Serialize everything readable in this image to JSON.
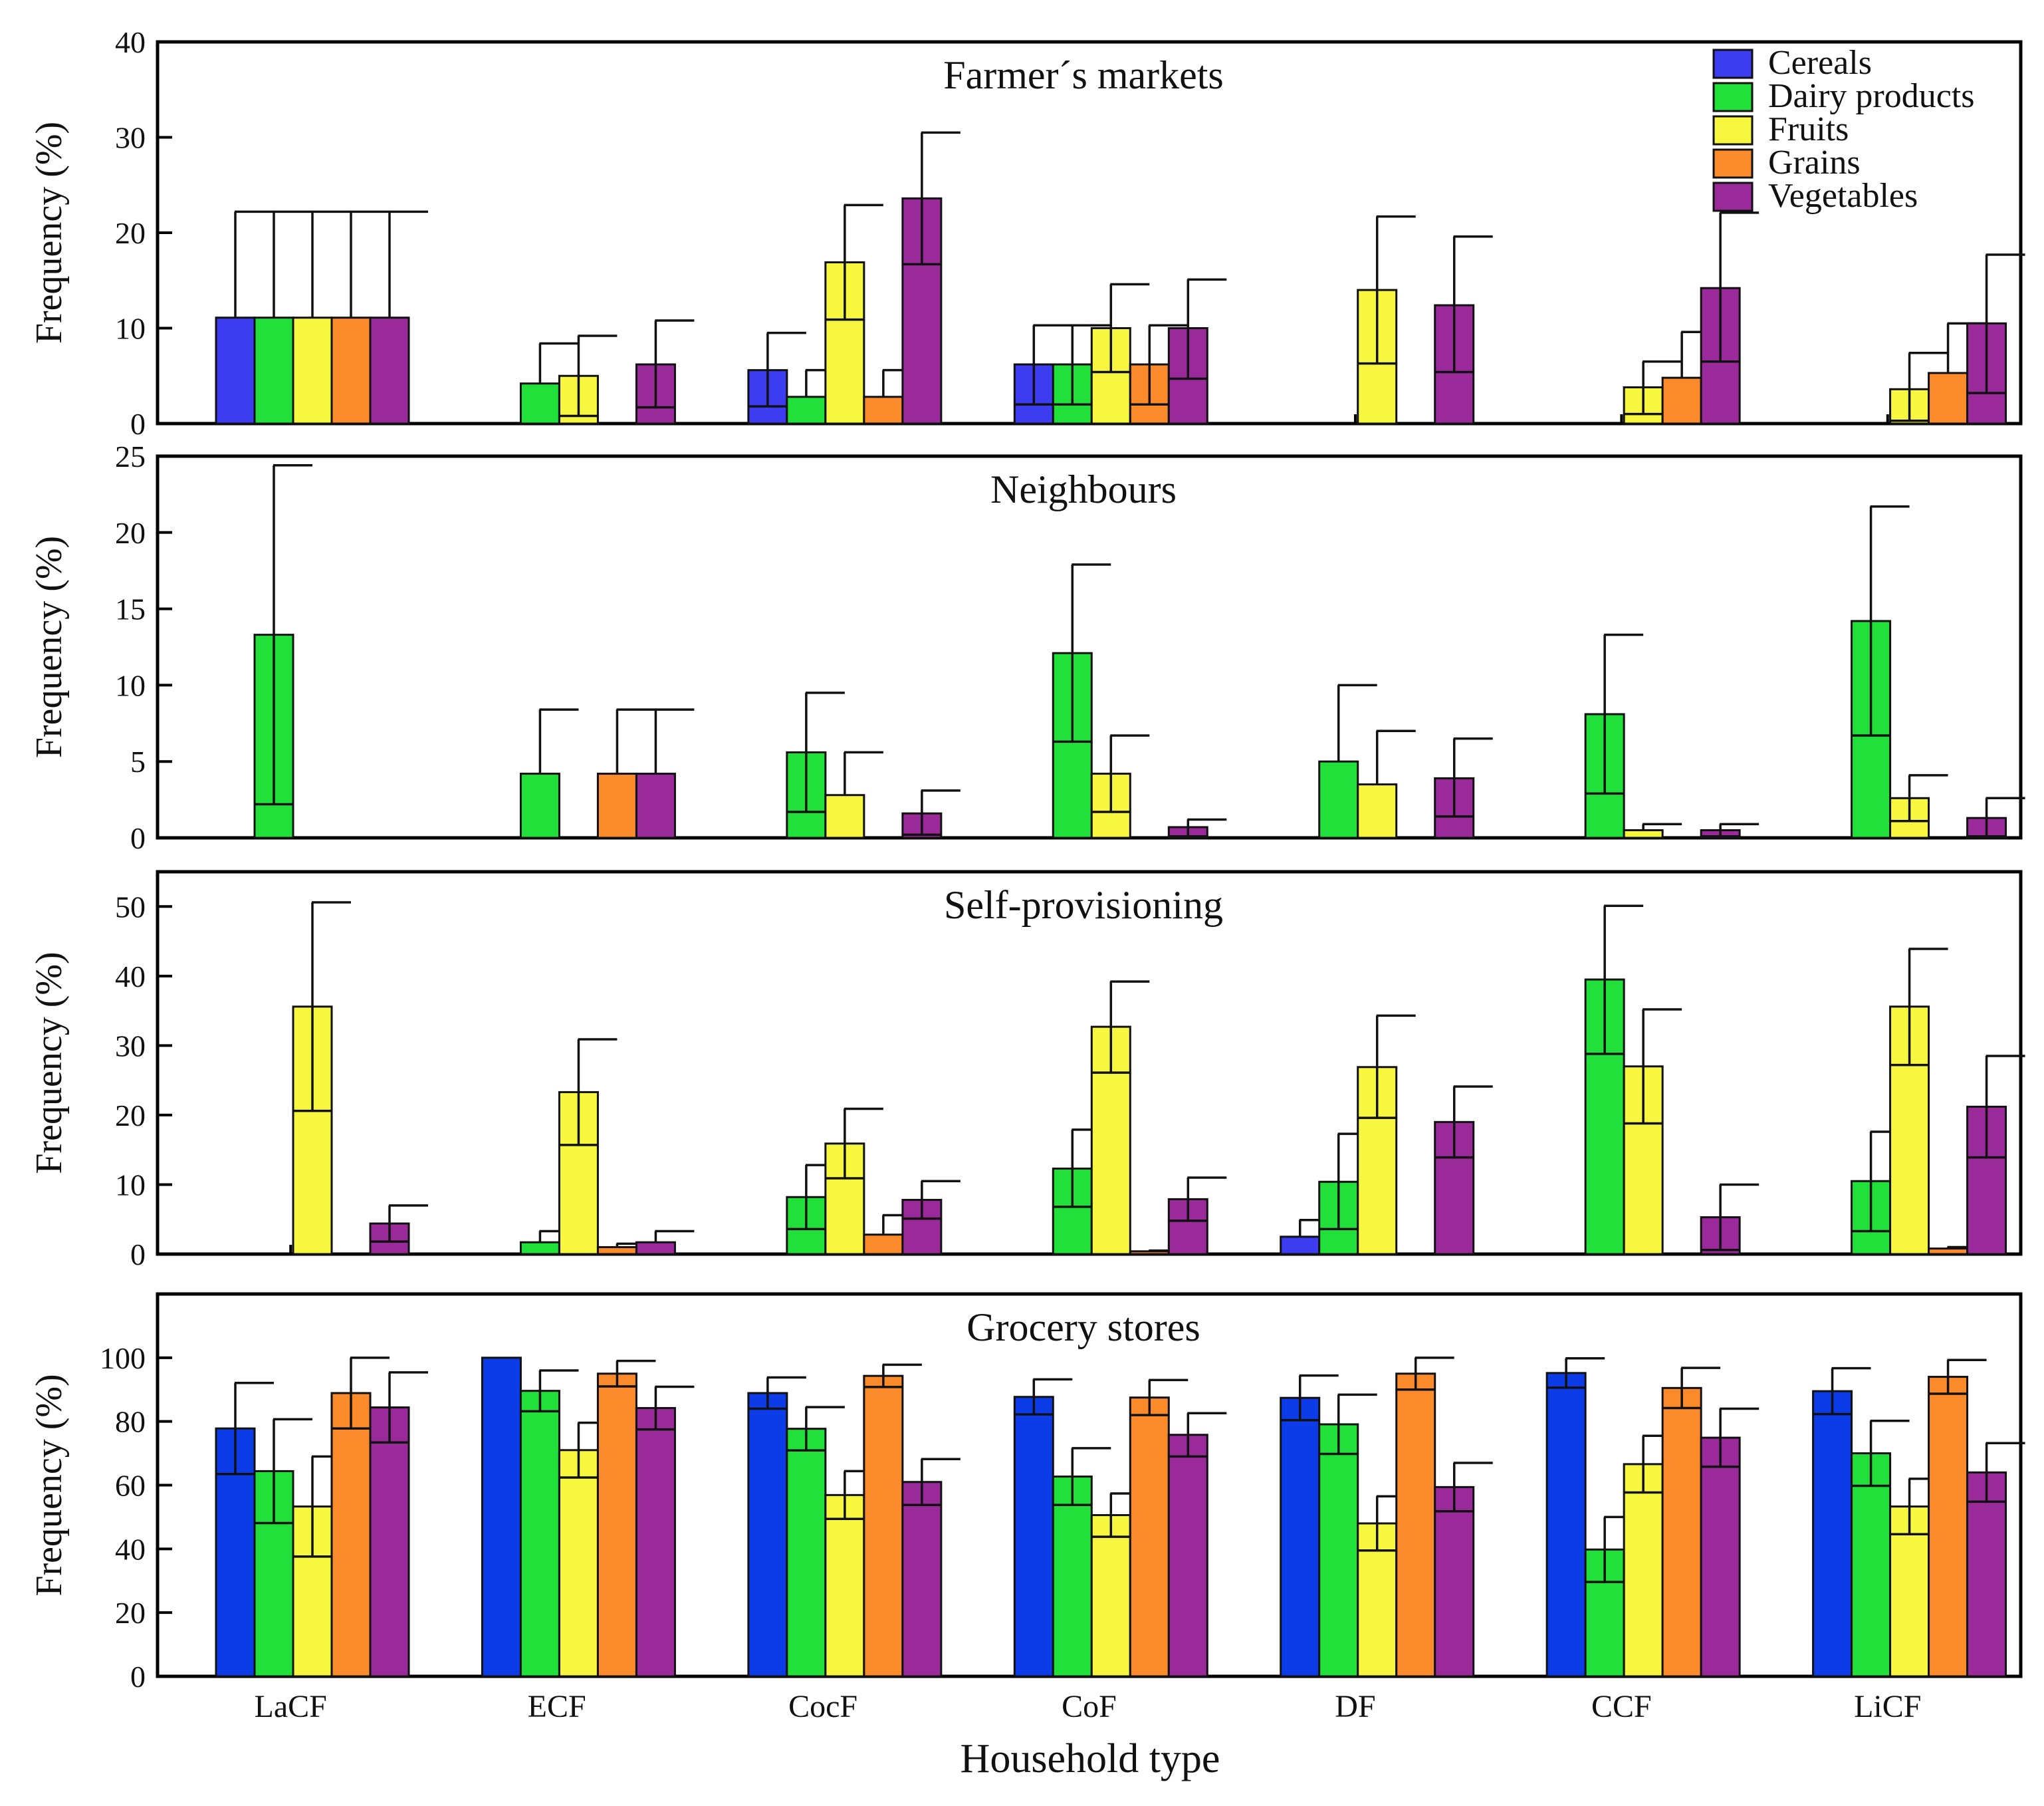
{
  "chart_data": {
    "type": "bar",
    "xlabel": "Household type",
    "ylabel": "Frequency (%)",
    "categories": [
      "LaCF",
      "ECF",
      "CocF",
      "CoF",
      "DF",
      "CCF",
      "LiCF"
    ],
    "legend": {
      "placement": "top-right",
      "entries": [
        "Cereals",
        "Dairy products",
        "Fruits",
        "Grains",
        "Vegetables"
      ]
    },
    "colors": {
      "Cereals": "#3c3cf0",
      "Dairy products": "#22e03a",
      "Fruits": "#f7f740",
      "Grains": "#fb8a2a",
      "Vegetables": "#9a2a9a"
    },
    "panels": [
      {
        "title": "Farmer´s markets",
        "ylim": [
          0,
          40
        ],
        "yticks": [
          0,
          10,
          20,
          30,
          40
        ],
        "series": [
          {
            "name": "Cereals",
            "color": "#3c3cf0",
            "values": [
              11.1,
              0,
              5.6,
              6.2,
              0,
              0,
              0
            ],
            "err_low": [
              0,
              0,
              1.8,
              2.0,
              0,
              0,
              0
            ],
            "err_high": [
              22.2,
              0,
              9.5,
              10.3,
              0,
              0,
              0
            ]
          },
          {
            "name": "Dairy products",
            "color": "#22e03a",
            "values": [
              11.1,
              4.2,
              2.8,
              6.2,
              0,
              0,
              0
            ],
            "err_low": [
              0,
              0,
              0,
              2.0,
              0,
              0,
              0
            ],
            "err_high": [
              22.2,
              8.4,
              5.6,
              10.3,
              0,
              0,
              0
            ]
          },
          {
            "name": "Fruits",
            "color": "#f7f740",
            "values": [
              11.1,
              5.0,
              16.9,
              10.0,
              14.0,
              3.8,
              3.6
            ],
            "err_low": [
              0,
              0.8,
              10.9,
              5.4,
              6.3,
              1.0,
              0.3
            ],
            "err_high": [
              22.2,
              9.2,
              22.9,
              14.6,
              21.7,
              6.5,
              7.4
            ]
          },
          {
            "name": "Grains",
            "color": "#fb8a2a",
            "values": [
              11.1,
              0,
              2.8,
              6.2,
              0,
              4.8,
              5.3
            ],
            "err_low": [
              0,
              0,
              0,
              2.0,
              0,
              0,
              0
            ],
            "err_high": [
              22.2,
              0,
              5.6,
              10.3,
              0,
              9.6,
              10.5
            ]
          },
          {
            "name": "Vegetables",
            "color": "#9a2a9a",
            "values": [
              11.1,
              6.2,
              23.6,
              10.0,
              12.4,
              14.2,
              10.5
            ],
            "err_low": [
              0,
              1.7,
              16.7,
              4.7,
              5.4,
              6.5,
              3.2
            ],
            "err_high": [
              22.2,
              10.8,
              30.5,
              15.1,
              19.6,
              22.1,
              17.7
            ]
          }
        ]
      },
      {
        "title": "Neighbours",
        "ylim": [
          0,
          25
        ],
        "yticks": [
          0,
          5,
          10,
          15,
          20,
          25
        ],
        "series": [
          {
            "name": "Cereals",
            "color": "#3c3cf0",
            "values": [
              0,
              0,
              0,
              0,
              0,
              0,
              0
            ],
            "err_low": [
              0,
              0,
              0,
              0,
              0,
              0,
              0
            ],
            "err_high": [
              0,
              0,
              0,
              0,
              0,
              0,
              0
            ]
          },
          {
            "name": "Dairy products",
            "color": "#22e03a",
            "values": [
              13.3,
              4.2,
              5.6,
              12.1,
              5.0,
              8.1,
              14.2
            ],
            "err_low": [
              2.2,
              0,
              1.7,
              6.3,
              0,
              2.9,
              6.7
            ],
            "err_high": [
              24.4,
              8.4,
              9.5,
              17.9,
              10.0,
              13.3,
              21.7
            ]
          },
          {
            "name": "Fruits",
            "color": "#f7f740",
            "values": [
              0,
              0,
              2.8,
              4.2,
              3.5,
              0.5,
              2.6
            ],
            "err_low": [
              0,
              0,
              0,
              1.7,
              0,
              0,
              1.1
            ],
            "err_high": [
              0,
              0,
              5.6,
              6.7,
              7.0,
              0.9,
              4.1
            ]
          },
          {
            "name": "Grains",
            "color": "#fb8a2a",
            "values": [
              0,
              4.2,
              0,
              0,
              0,
              0,
              0
            ],
            "err_low": [
              0,
              0,
              0,
              0,
              0,
              0,
              0
            ],
            "err_high": [
              0,
              8.4,
              0,
              0,
              0,
              0,
              0
            ]
          },
          {
            "name": "Vegetables",
            "color": "#9a2a9a",
            "values": [
              0,
              4.2,
              1.6,
              0.7,
              3.9,
              0.5,
              1.3
            ],
            "err_low": [
              0,
              0,
              0.2,
              0.1,
              1.4,
              0.1,
              0.1
            ],
            "err_high": [
              0,
              8.4,
              3.1,
              1.2,
              6.5,
              0.9,
              2.6
            ]
          }
        ]
      },
      {
        "title": "Self-provisioning",
        "ylim": [
          0,
          55
        ],
        "yticks": [
          0,
          10,
          20,
          30,
          40,
          50
        ],
        "series": [
          {
            "name": "Cereals",
            "color": "#3c3cf0",
            "values": [
              0,
              0,
              0,
              0,
              2.5,
              0,
              0
            ],
            "err_low": [
              0,
              0,
              0,
              0,
              0,
              0,
              0
            ],
            "err_high": [
              0,
              0,
              0,
              0,
              4.9,
              0,
              0
            ]
          },
          {
            "name": "Dairy products",
            "color": "#22e03a",
            "values": [
              0,
              1.7,
              8.2,
              12.3,
              10.4,
              39.5,
              10.5
            ],
            "err_low": [
              0,
              0,
              3.6,
              6.8,
              3.6,
              28.8,
              3.3
            ],
            "err_high": [
              0,
              3.3,
              12.8,
              17.9,
              17.3,
              50.1,
              17.6
            ]
          },
          {
            "name": "Fruits",
            "color": "#f7f740",
            "values": [
              35.6,
              23.3,
              15.9,
              32.7,
              26.9,
              27.0,
              35.6
            ],
            "err_low": [
              20.6,
              15.7,
              10.9,
              26.1,
              19.6,
              18.8,
              27.2
            ],
            "err_high": [
              50.6,
              30.9,
              20.9,
              39.2,
              34.3,
              35.2,
              43.9
            ]
          },
          {
            "name": "Grains",
            "color": "#fb8a2a",
            "values": [
              0,
              1.0,
              2.8,
              0.4,
              0,
              0,
              0.8
            ],
            "err_low": [
              0,
              0,
              0,
              0,
              0,
              0,
              0
            ],
            "err_high": [
              0,
              1.5,
              5.6,
              0.5,
              0,
              0,
              1.0
            ]
          },
          {
            "name": "Vegetables",
            "color": "#9a2a9a",
            "values": [
              4.4,
              1.7,
              7.8,
              7.9,
              19.0,
              5.3,
              21.2
            ],
            "err_low": [
              1.8,
              0,
              5.1,
              4.8,
              13.9,
              0.6,
              13.9
            ],
            "err_high": [
              7.0,
              3.3,
              10.5,
              11.0,
              24.1,
              10.0,
              28.5
            ]
          }
        ]
      },
      {
        "title": "Grocery stores",
        "ylim": [
          0,
          120
        ],
        "yticks": [
          0,
          20,
          40,
          60,
          80,
          100
        ],
        "series": [
          {
            "name": "Cereals",
            "color": "#0c3ce8",
            "values": [
              77.8,
              100,
              88.9,
              87.7,
              87.4,
              95.2,
              89.5
            ],
            "err_low": [
              63.5,
              100,
              84.0,
              82.2,
              80.4,
              90.6,
              82.3
            ],
            "err_high": [
              92.1,
              100,
              93.8,
              93.2,
              94.4,
              99.8,
              96.7
            ]
          },
          {
            "name": "Dairy products",
            "color": "#22e03a",
            "values": [
              64.4,
              89.6,
              77.7,
              62.7,
              79.1,
              39.8,
              70.0
            ],
            "err_low": [
              48.1,
              83.2,
              70.9,
              53.8,
              69.8,
              29.6,
              59.8
            ],
            "err_high": [
              80.7,
              96.0,
              84.5,
              71.6,
              88.4,
              50.0,
              80.2
            ]
          },
          {
            "name": "Fruits",
            "color": "#f7f740",
            "values": [
              53.3,
              71.0,
              56.9,
              50.6,
              48.0,
              66.6,
              53.3
            ],
            "err_low": [
              37.6,
              62.4,
              49.4,
              43.8,
              39.5,
              57.7,
              44.6
            ],
            "err_high": [
              69.0,
              79.6,
              64.4,
              57.4,
              56.5,
              75.5,
              62.0
            ]
          },
          {
            "name": "Grains",
            "color": "#fb8a2a",
            "values": [
              88.9,
              95.0,
              94.3,
              87.5,
              95.0,
              90.5,
              94.0
            ],
            "err_low": [
              77.8,
              91.0,
              90.8,
              82.0,
              90.0,
              84.2,
              88.7
            ],
            "err_high": [
              100,
              99.0,
              97.8,
              93.0,
              100,
              96.8,
              99.3
            ]
          },
          {
            "name": "Vegetables",
            "color": "#9a2a9a",
            "values": [
              84.4,
              84.2,
              61.0,
              75.8,
              59.4,
              74.9,
              64.0
            ],
            "err_low": [
              73.4,
              77.5,
              53.8,
              69.0,
              51.8,
              65.8,
              54.8
            ],
            "err_high": [
              95.4,
              90.9,
              68.2,
              82.6,
              67.0,
              84.0,
              73.2
            ]
          }
        ]
      }
    ]
  }
}
